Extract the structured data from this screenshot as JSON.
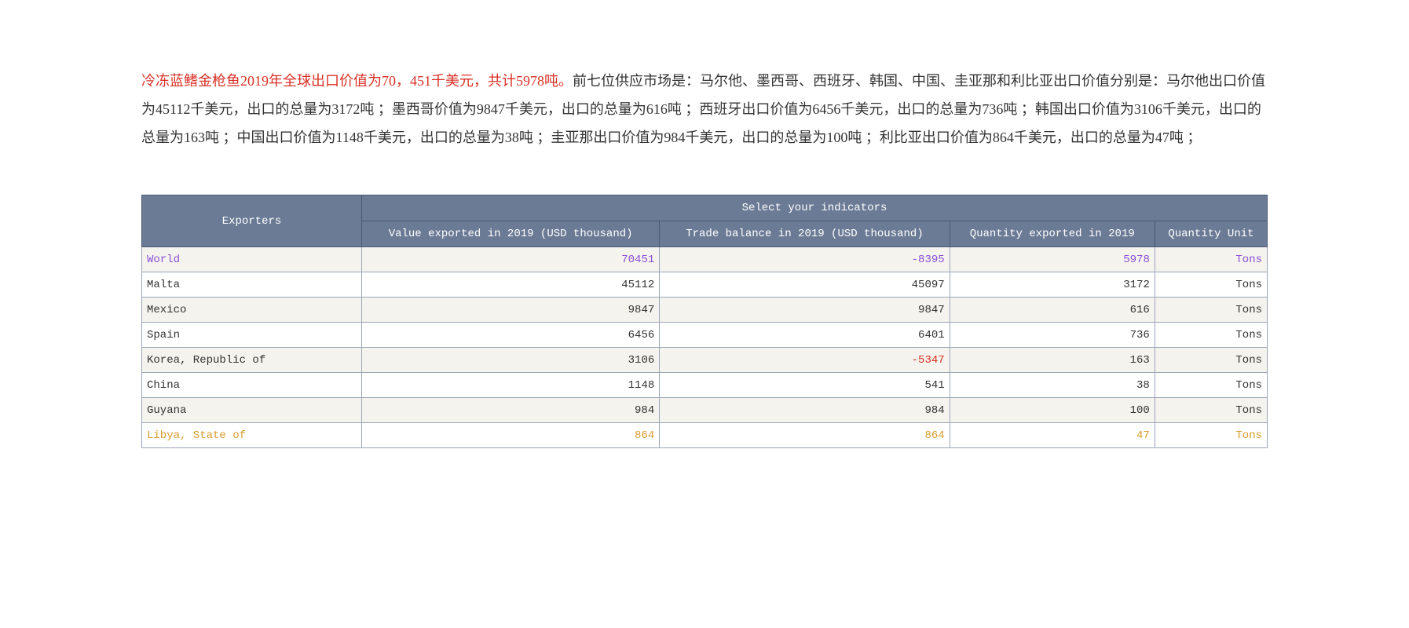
{
  "description": {
    "highlight": "冷冻蓝鳍金枪鱼2019年全球出口价值为70，451千美元，共计5978吨。",
    "rest": "前七位供应市场是：马尔他、墨西哥、西班牙、韩国、中国、圭亚那和利比亚出口价值分别是：马尔他出口价值为45112千美元，出口的总量为3172吨 ；墨西哥价值为9847千美元，出口的总量为616吨 ；西班牙出口价值为6456千美元，出口的总量为736吨 ；韩国出口价值为3106千美元，出口的总量为163吨 ；中国出口价值为1148千美元，出口的总量为38吨 ；圭亚那出口价值为984千美元，出口的总量为100吨 ；利比亚出口价值为864千美元，出口的总量为47吨 ；"
  },
  "table": {
    "header": {
      "exporters": "Exporters",
      "group": "Select your indicators",
      "col_value": "Value exported in 2019 (USD thousand)",
      "col_balance": "Trade balance in 2019 (USD thousand)",
      "col_qty": "Quantity exported in 2019",
      "col_unit": "Quantity Unit"
    },
    "rows": [
      {
        "exporter": "World",
        "value": "70451",
        "balance": "-8395",
        "qty": "5978",
        "unit": "Tons",
        "cls": "world",
        "balance_neg": true
      },
      {
        "exporter": "Malta",
        "value": "45112",
        "balance": "45097",
        "qty": "3172",
        "unit": "Tons",
        "cls": "",
        "balance_neg": false
      },
      {
        "exporter": "Mexico",
        "value": "9847",
        "balance": "9847",
        "qty": "616",
        "unit": "Tons",
        "cls": "",
        "balance_neg": false
      },
      {
        "exporter": "Spain",
        "value": "6456",
        "balance": "6401",
        "qty": "736",
        "unit": "Tons",
        "cls": "",
        "balance_neg": false
      },
      {
        "exporter": "Korea, Republic of",
        "value": "3106",
        "balance": "-5347",
        "qty": "163",
        "unit": "Tons",
        "cls": "",
        "balance_neg": true
      },
      {
        "exporter": "China",
        "value": "1148",
        "balance": "541",
        "qty": "38",
        "unit": "Tons",
        "cls": "",
        "balance_neg": false
      },
      {
        "exporter": "Guyana",
        "value": "984",
        "balance": "984",
        "qty": "100",
        "unit": "Tons",
        "cls": "",
        "balance_neg": false
      },
      {
        "exporter": "Libya, State of",
        "value": "864",
        "balance": "864",
        "qty": "47",
        "unit": "Tons",
        "cls": "libya",
        "balance_neg": false
      }
    ]
  },
  "colors": {
    "header_bg": "#6b7b95",
    "header_border": "#4a5a74",
    "cell_border": "#9aa5b8",
    "row_even_bg": "#f5f3ed",
    "row_odd_bg": "#ffffff",
    "negative": "#d93025",
    "world_text": "#8a4fd8",
    "libya_text": "#d89b2e",
    "highlight_text": "#d93025",
    "body_text": "#333333"
  }
}
